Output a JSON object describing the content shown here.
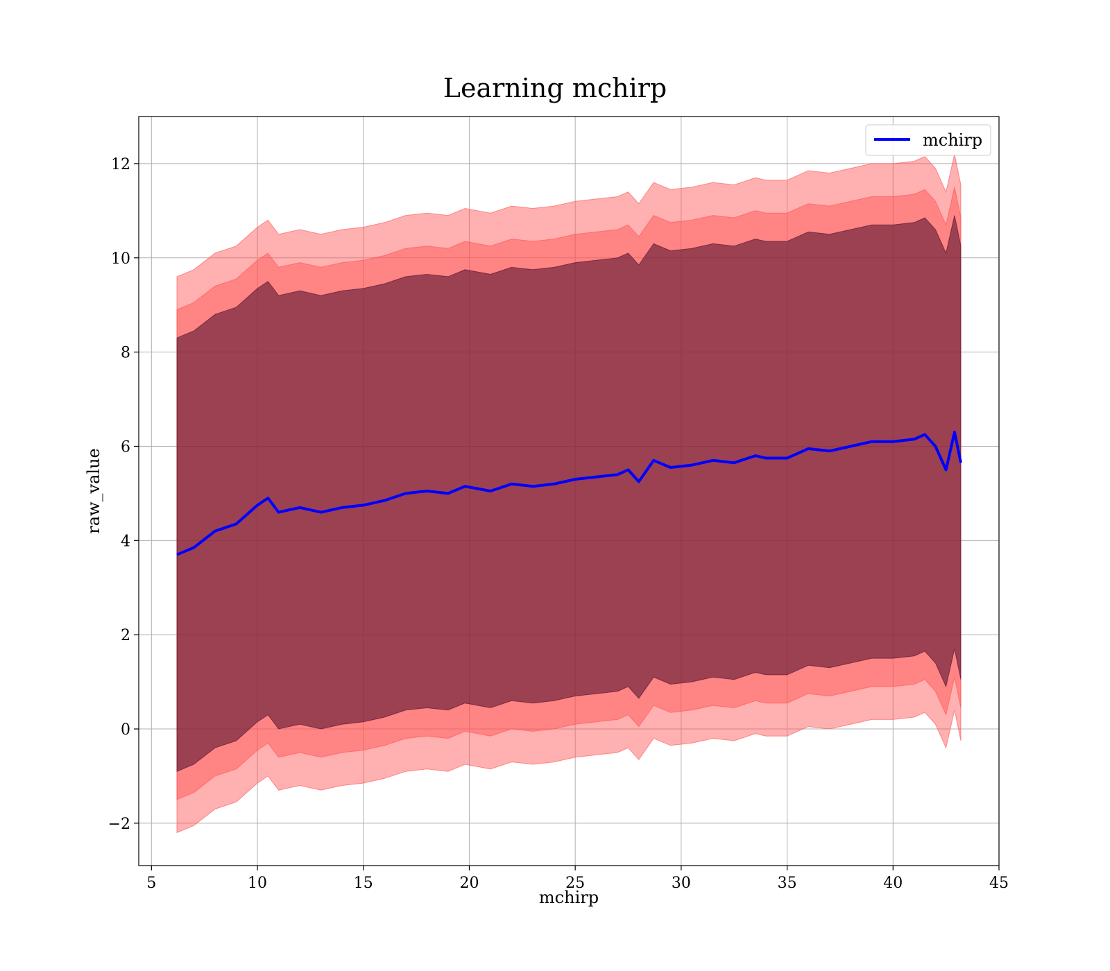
{
  "chart_data": {
    "type": "area",
    "title": "Learning mchirp",
    "xlabel": "mchirp",
    "ylabel": "raw_value",
    "xlim": [
      4.4,
      45
    ],
    "ylim": [
      -2.9,
      13
    ],
    "xticks": [
      5,
      10,
      15,
      20,
      25,
      30,
      35,
      40,
      45
    ],
    "yticks": [
      -2,
      0,
      2,
      4,
      6,
      8,
      10,
      12
    ],
    "ytick_labels": [
      "−2",
      "0",
      "2",
      "4",
      "6",
      "8",
      "10",
      "12"
    ],
    "grid": true,
    "legend": {
      "position": "top-right",
      "entries": [
        "mchirp"
      ]
    },
    "x": [
      6.2,
      7.0,
      8.0,
      9.0,
      10.0,
      10.5,
      11.0,
      12.0,
      13.0,
      14.0,
      15.0,
      16.0,
      17.0,
      18.0,
      19.0,
      19.8,
      21.0,
      22.0,
      23.0,
      24.0,
      25.0,
      26.0,
      27.0,
      27.5,
      28.0,
      28.7,
      29.5,
      30.5,
      31.5,
      32.5,
      33.5,
      34.0,
      35.0,
      36.0,
      37.0,
      38.0,
      39.0,
      40.0,
      41.0,
      41.5,
      42.0,
      42.5,
      42.9,
      43.2
    ],
    "series": [
      {
        "name": "mchirp",
        "color": "#0000ff",
        "values": [
          3.7,
          3.85,
          4.2,
          4.35,
          4.75,
          4.9,
          4.6,
          4.7,
          4.6,
          4.7,
          4.75,
          4.85,
          5.0,
          5.05,
          5.0,
          5.15,
          5.05,
          5.2,
          5.15,
          5.2,
          5.3,
          5.35,
          5.4,
          5.5,
          5.25,
          5.7,
          5.55,
          5.6,
          5.7,
          5.65,
          5.8,
          5.75,
          5.75,
          5.95,
          5.9,
          6.0,
          6.1,
          6.1,
          6.15,
          6.25,
          6.0,
          5.5,
          6.3,
          5.65
        ]
      }
    ],
    "bands": [
      {
        "color": "#ff5050",
        "opacity": 0.45,
        "upper_offset": 5.9,
        "lower_offset": -5.9
      },
      {
        "color": "#ff5050",
        "opacity": 0.45,
        "upper_offset": 5.2,
        "lower_offset": -5.2
      },
      {
        "color": "#4a0b2a",
        "opacity": 0.55,
        "upper_offset": 4.6,
        "lower_offset": -4.6
      }
    ]
  }
}
